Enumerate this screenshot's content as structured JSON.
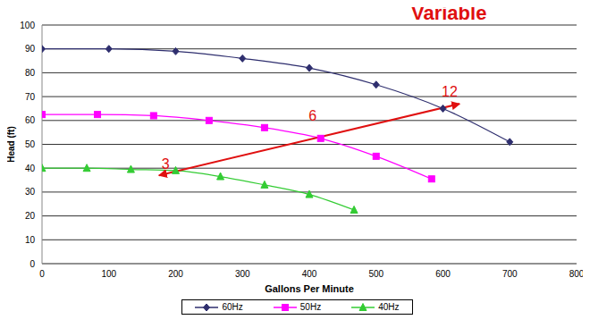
{
  "chart_data": {
    "type": "line",
    "title": "Variable",
    "x_label": "Gallons Per Minute",
    "y_label": "Head (ft)",
    "xlim": [
      0,
      800
    ],
    "xticks": [
      0,
      100,
      200,
      300,
      400,
      500,
      600,
      700,
      800
    ],
    "ylim": [
      0,
      100
    ],
    "yticks": [
      0,
      10,
      20,
      30,
      40,
      50,
      60,
      70,
      80,
      90,
      100
    ],
    "grid": true,
    "legend": "bottom",
    "series": [
      {
        "name": "60Hz",
        "color": "#2e2e6e",
        "marker": "diamond",
        "x": [
          0,
          100,
          200,
          300,
          400,
          500,
          600,
          700
        ],
        "values": [
          90,
          90,
          89,
          86,
          82,
          75,
          65,
          51
        ]
      },
      {
        "name": "50Hz",
        "color": "#ff00ff",
        "marker": "square",
        "x": [
          0,
          83,
          167,
          250,
          333,
          417,
          500,
          583
        ],
        "values": [
          62.5,
          62.5,
          62,
          60,
          57,
          52.5,
          45,
          35.5
        ]
      },
      {
        "name": "40Hz",
        "color": "#33cc33",
        "marker": "triangle",
        "x": [
          0,
          67,
          133,
          200,
          267,
          333,
          400,
          467
        ],
        "values": [
          40,
          40,
          39.5,
          39,
          36.5,
          33,
          29,
          22.5
        ]
      }
    ],
    "annotations": [
      {
        "text": "3",
        "x": 185,
        "y": 42
      },
      {
        "text": "6",
        "x": 405,
        "y": 62
      },
      {
        "text": "12",
        "x": 610,
        "y": 72
      }
    ],
    "arrow": {
      "x": [
        175,
        625
      ],
      "y": [
        37,
        67
      ]
    }
  }
}
